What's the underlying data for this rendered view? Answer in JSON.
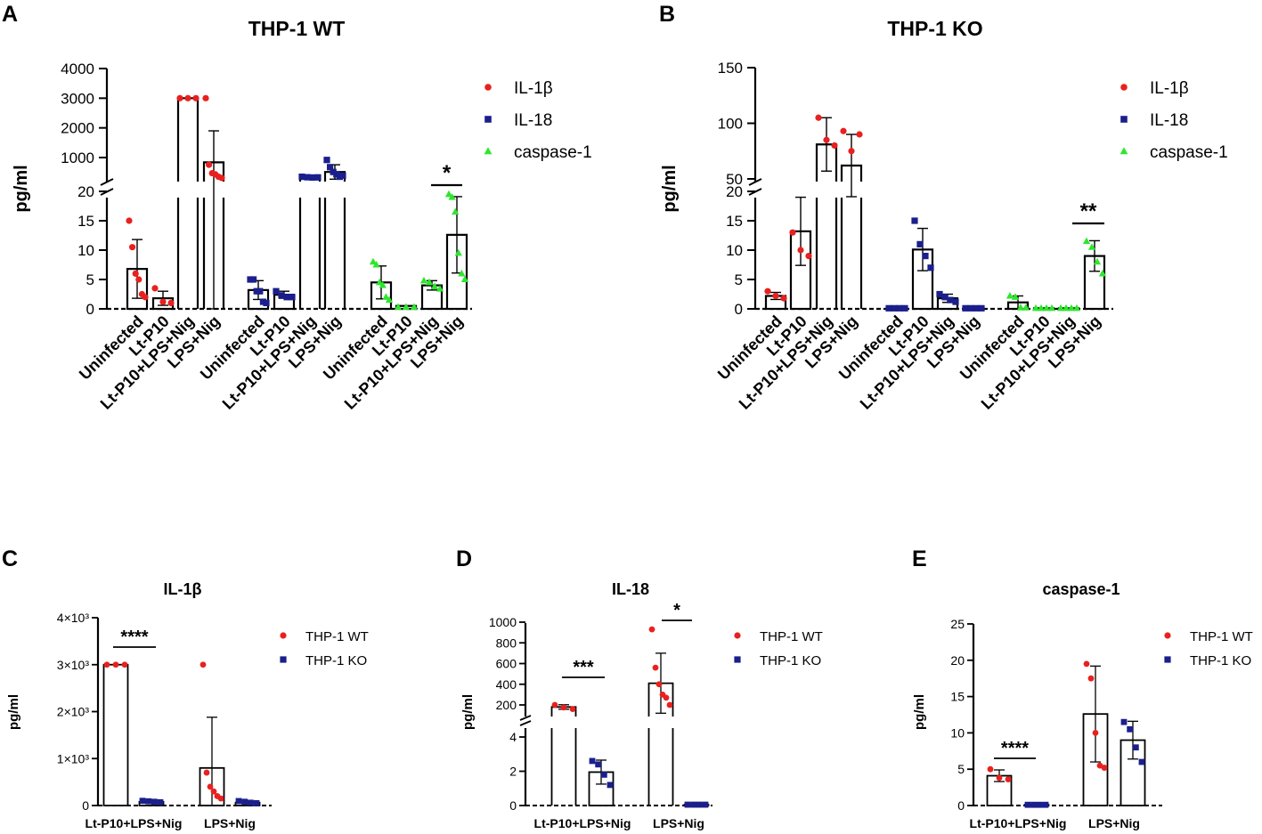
{
  "chart_data": [
    {
      "panel": "A",
      "type": "bar",
      "title": "THP-1 WT",
      "ylabel": "pg/ml",
      "broken_axis": {
        "lower_range": [
          0,
          20
        ],
        "lower_ticks": [
          "0",
          "5",
          "10",
          "15",
          "20"
        ],
        "upper_ticks": [
          "1000",
          "2000",
          "3000",
          "4000"
        ]
      },
      "legend": [
        {
          "name": "IL-1β",
          "color": "#e8211f",
          "marker": "circle"
        },
        {
          "name": "IL-18",
          "color": "#1b1f8c",
          "marker": "square"
        },
        {
          "name": "caspase-1",
          "color": "#2ee62e",
          "marker": "triangle"
        }
      ],
      "groups": [
        {
          "series": "IL-1β",
          "bars": [
            {
              "label": "Uninfected",
              "mean": 6.8,
              "sd": 5.0,
              "points": [
                15,
                10.5,
                6,
                5,
                2.5,
                2
              ]
            },
            {
              "label": "Lt-P10",
              "mean": 1.8,
              "sd": 1.2,
              "points": [
                3.5,
                1.2,
                1.0
              ]
            },
            {
              "label": "Lt-P10+LPS+Nig",
              "mean": 3000,
              "sd": 0,
              "points": [
                3000,
                3000,
                3000
              ]
            },
            {
              "label": "LPS+Nig",
              "mean": 800,
              "sd": 1100,
              "points": [
                3000,
                700,
                350,
                300,
                200,
                150
              ]
            }
          ]
        },
        {
          "series": "IL-18",
          "bars": [
            {
              "label": "Uninfected",
              "mean": 3.2,
              "sd": 1.6,
              "points": [
                5,
                5,
                3,
                3,
                1.2,
                1
              ]
            },
            {
              "label": "Lt-P10",
              "mean": 2.4,
              "sd": 0.6,
              "points": [
                3,
                2.3,
                2.0,
                2.0
              ]
            },
            {
              "label": "Lt-P10+LPS+Nig",
              "mean": 180,
              "sd": 20,
              "points": [
                200,
                180,
                170,
                175
              ]
            },
            {
              "label": "LPS+Nig",
              "mean": 400,
              "sd": 300,
              "points": [
                900,
                600,
                400,
                300,
                200,
                250
              ]
            }
          ]
        },
        {
          "series": "caspase-1",
          "bars": [
            {
              "label": "Uninfected",
              "mean": 4.5,
              "sd": 2.8,
              "points": [
                8,
                7.5,
                4.5,
                4,
                2,
                1.5
              ]
            },
            {
              "label": "Lt-P10",
              "mean": 0.5,
              "sd": 0,
              "points": [
                0.3,
                0.3,
                0.3
              ]
            },
            {
              "label": "Lt-P10+LPS+Nig",
              "mean": 4.0,
              "sd": 0.8,
              "points": [
                4.8,
                4.5,
                3.8,
                3.4
              ]
            },
            {
              "label": "LPS+Nig",
              "mean": 12.6,
              "sd": 6.5,
              "points": [
                19.5,
                19,
                16.5,
                9.5,
                6,
                5
              ]
            }
          ]
        }
      ],
      "significance": [
        {
          "label": "*",
          "group": 3,
          "bars": [
            3,
            4
          ]
        }
      ]
    },
    {
      "panel": "B",
      "type": "bar",
      "title": "THP-1 KO",
      "ylabel": "pg/ml",
      "broken_axis": {
        "lower_range": [
          0,
          20
        ],
        "lower_ticks": [
          "0",
          "5",
          "10",
          "15",
          "20"
        ],
        "upper_range": [
          50,
          150
        ],
        "upper_ticks": [
          "50",
          "100",
          "150"
        ]
      },
      "legend": [
        {
          "name": "IL-1β",
          "color": "#e8211f",
          "marker": "circle"
        },
        {
          "name": "IL-18",
          "color": "#1b1f8c",
          "marker": "square"
        },
        {
          "name": "caspase-1",
          "color": "#2ee62e",
          "marker": "triangle"
        }
      ],
      "groups": [
        {
          "series": "IL-1β",
          "bars": [
            {
              "label": "Uninfected",
              "mean": 2.2,
              "sd": 0.6,
              "points": [
                3,
                2.2,
                1.8
              ]
            },
            {
              "label": "Lt-P10",
              "mean": 13.2,
              "sd": 5.8,
              "points": [
                13,
                10,
                9
              ]
            },
            {
              "label": "Lt-P10+LPS+Nig",
              "mean": 81,
              "sd": 24,
              "points": [
                105,
                85,
                80
              ]
            },
            {
              "label": "LPS+Nig",
              "mean": 62,
              "sd": 28,
              "points": [
                93,
                75,
                90
              ]
            }
          ]
        },
        {
          "series": "IL-18",
          "bars": [
            {
              "label": "Uninfected",
              "mean": 0.1,
              "sd": 0,
              "points": [
                0.1,
                0.1,
                0.1,
                0.1
              ]
            },
            {
              "label": "Lt-P10",
              "mean": 10.1,
              "sd": 3.6,
              "points": [
                15,
                11,
                9,
                7
              ]
            },
            {
              "label": "Lt-P10+LPS+Nig",
              "mean": 1.8,
              "sd": 0.7,
              "points": [
                2.5,
                2.0,
                1.5,
                1.2
              ]
            },
            {
              "label": "LPS+Nig",
              "mean": 0.1,
              "sd": 0,
              "points": [
                0.1,
                0.1,
                0.1,
                0.1
              ]
            }
          ]
        },
        {
          "series": "caspase-1",
          "bars": [
            {
              "label": "Uninfected",
              "mean": 1.1,
              "sd": 1.1,
              "points": [
                2.2,
                2.0,
                0.2,
                0.2
              ]
            },
            {
              "label": "Lt-P10",
              "mean": 0.1,
              "sd": 0,
              "points": [
                0.1,
                0.1,
                0.1,
                0.1
              ]
            },
            {
              "label": "Lt-P10+LPS+Nig",
              "mean": 0.1,
              "sd": 0,
              "points": [
                0.1,
                0.1,
                0.1,
                0.1
              ]
            },
            {
              "label": "LPS+Nig",
              "mean": 9.0,
              "sd": 2.6,
              "points": [
                11.5,
                10.5,
                8,
                6
              ]
            }
          ]
        }
      ],
      "significance": [
        {
          "label": "**",
          "group": 3,
          "bars": [
            4,
            4
          ]
        }
      ]
    },
    {
      "panel": "C",
      "type": "bar",
      "title": "IL-1β",
      "ylabel": "pg/ml",
      "ylim": [
        0,
        4000
      ],
      "yticks": [
        "0",
        "1×10³",
        "2×10³",
        "3×10³",
        "4×10³"
      ],
      "legend": [
        {
          "name": "THP-1 WT",
          "color": "#e8211f",
          "marker": "circle"
        },
        {
          "name": "THP-1 KO",
          "color": "#1b1f8c",
          "marker": "square"
        }
      ],
      "groups": [
        {
          "label": "Lt-P10+LPS+Nig",
          "bars": [
            {
              "series": "THP-1 WT",
              "mean": 3000,
              "sd": 0,
              "points": [
                3000,
                3000,
                3000
              ]
            },
            {
              "series": "THP-1 KO",
              "mean": 80,
              "sd": 25,
              "points": [
                100,
                90,
                80,
                70
              ]
            }
          ]
        },
        {
          "label": "LPS+Nig",
          "bars": [
            {
              "series": "THP-1 WT",
              "mean": 800,
              "sd": 1080,
              "points": [
                3000,
                700,
                400,
                300,
                200,
                150
              ]
            },
            {
              "series": "THP-1 KO",
              "mean": 62,
              "sd": 28,
              "points": [
                95,
                80,
                60,
                50
              ]
            }
          ]
        }
      ],
      "significance": [
        {
          "label": "****",
          "group": 0
        }
      ]
    },
    {
      "panel": "D",
      "type": "bar",
      "title": "IL-18",
      "ylabel": "pg/ml",
      "broken_axis": {
        "lower_range": [
          0,
          4
        ],
        "lower_ticks": [
          "0",
          "2",
          "4"
        ],
        "upper_ticks": [
          "200",
          "400",
          "600",
          "800",
          "1000"
        ]
      },
      "legend": [
        {
          "name": "THP-1 WT",
          "color": "#e8211f",
          "marker": "circle"
        },
        {
          "name": "THP-1 KO",
          "color": "#1b1f8c",
          "marker": "square"
        }
      ],
      "groups": [
        {
          "label": "Lt-P10+LPS+Nig",
          "bars": [
            {
              "series": "THP-1 WT",
              "mean": 180,
              "sd": 22,
              "points": [
                200,
                175,
                160
              ]
            },
            {
              "series": "THP-1 KO",
              "mean": 1.95,
              "sd": 0.7,
              "points": [
                2.6,
                2.4,
                1.8,
                1.2
              ]
            }
          ]
        },
        {
          "label": "LPS+Nig",
          "bars": [
            {
              "series": "THP-1 WT",
              "mean": 410,
              "sd": 290,
              "points": [
                930,
                560,
                400,
                300,
                270,
                200
              ]
            },
            {
              "series": "THP-1 KO",
              "mean": 0.05,
              "sd": 0,
              "points": [
                0.05,
                0.05,
                0.05,
                0.05
              ]
            }
          ]
        }
      ],
      "significance": [
        {
          "label": "***",
          "group": 0
        },
        {
          "label": "*",
          "group": 1
        }
      ]
    },
    {
      "panel": "E",
      "type": "bar",
      "title": "caspase-1",
      "ylabel": "pg/ml",
      "ylim": [
        0,
        25
      ],
      "yticks": [
        "0",
        "5",
        "10",
        "15",
        "20",
        "25"
      ],
      "legend": [
        {
          "name": "THP-1 WT",
          "color": "#e8211f",
          "marker": "circle"
        },
        {
          "name": "THP-1 KO",
          "color": "#1b1f8c",
          "marker": "square"
        }
      ],
      "groups": [
        {
          "label": "Lt-P10+LPS+Nig",
          "bars": [
            {
              "series": "THP-1 WT",
              "mean": 4.1,
              "sd": 0.8,
              "points": [
                5,
                3.8,
                3.6
              ]
            },
            {
              "series": "THP-1 KO",
              "mean": 0.1,
              "sd": 0,
              "points": [
                0.1,
                0.1,
                0.1,
                0.1
              ]
            }
          ]
        },
        {
          "label": "LPS+Nig",
          "bars": [
            {
              "series": "THP-1 WT",
              "mean": 12.6,
              "sd": 6.6,
              "points": [
                19.5,
                17.5,
                10,
                5.5,
                5.2
              ]
            },
            {
              "series": "THP-1 KO",
              "mean": 9.0,
              "sd": 2.6,
              "points": [
                11.5,
                10.5,
                8,
                6
              ]
            }
          ]
        }
      ],
      "significance": [
        {
          "label": "****",
          "group": 0
        }
      ]
    }
  ]
}
